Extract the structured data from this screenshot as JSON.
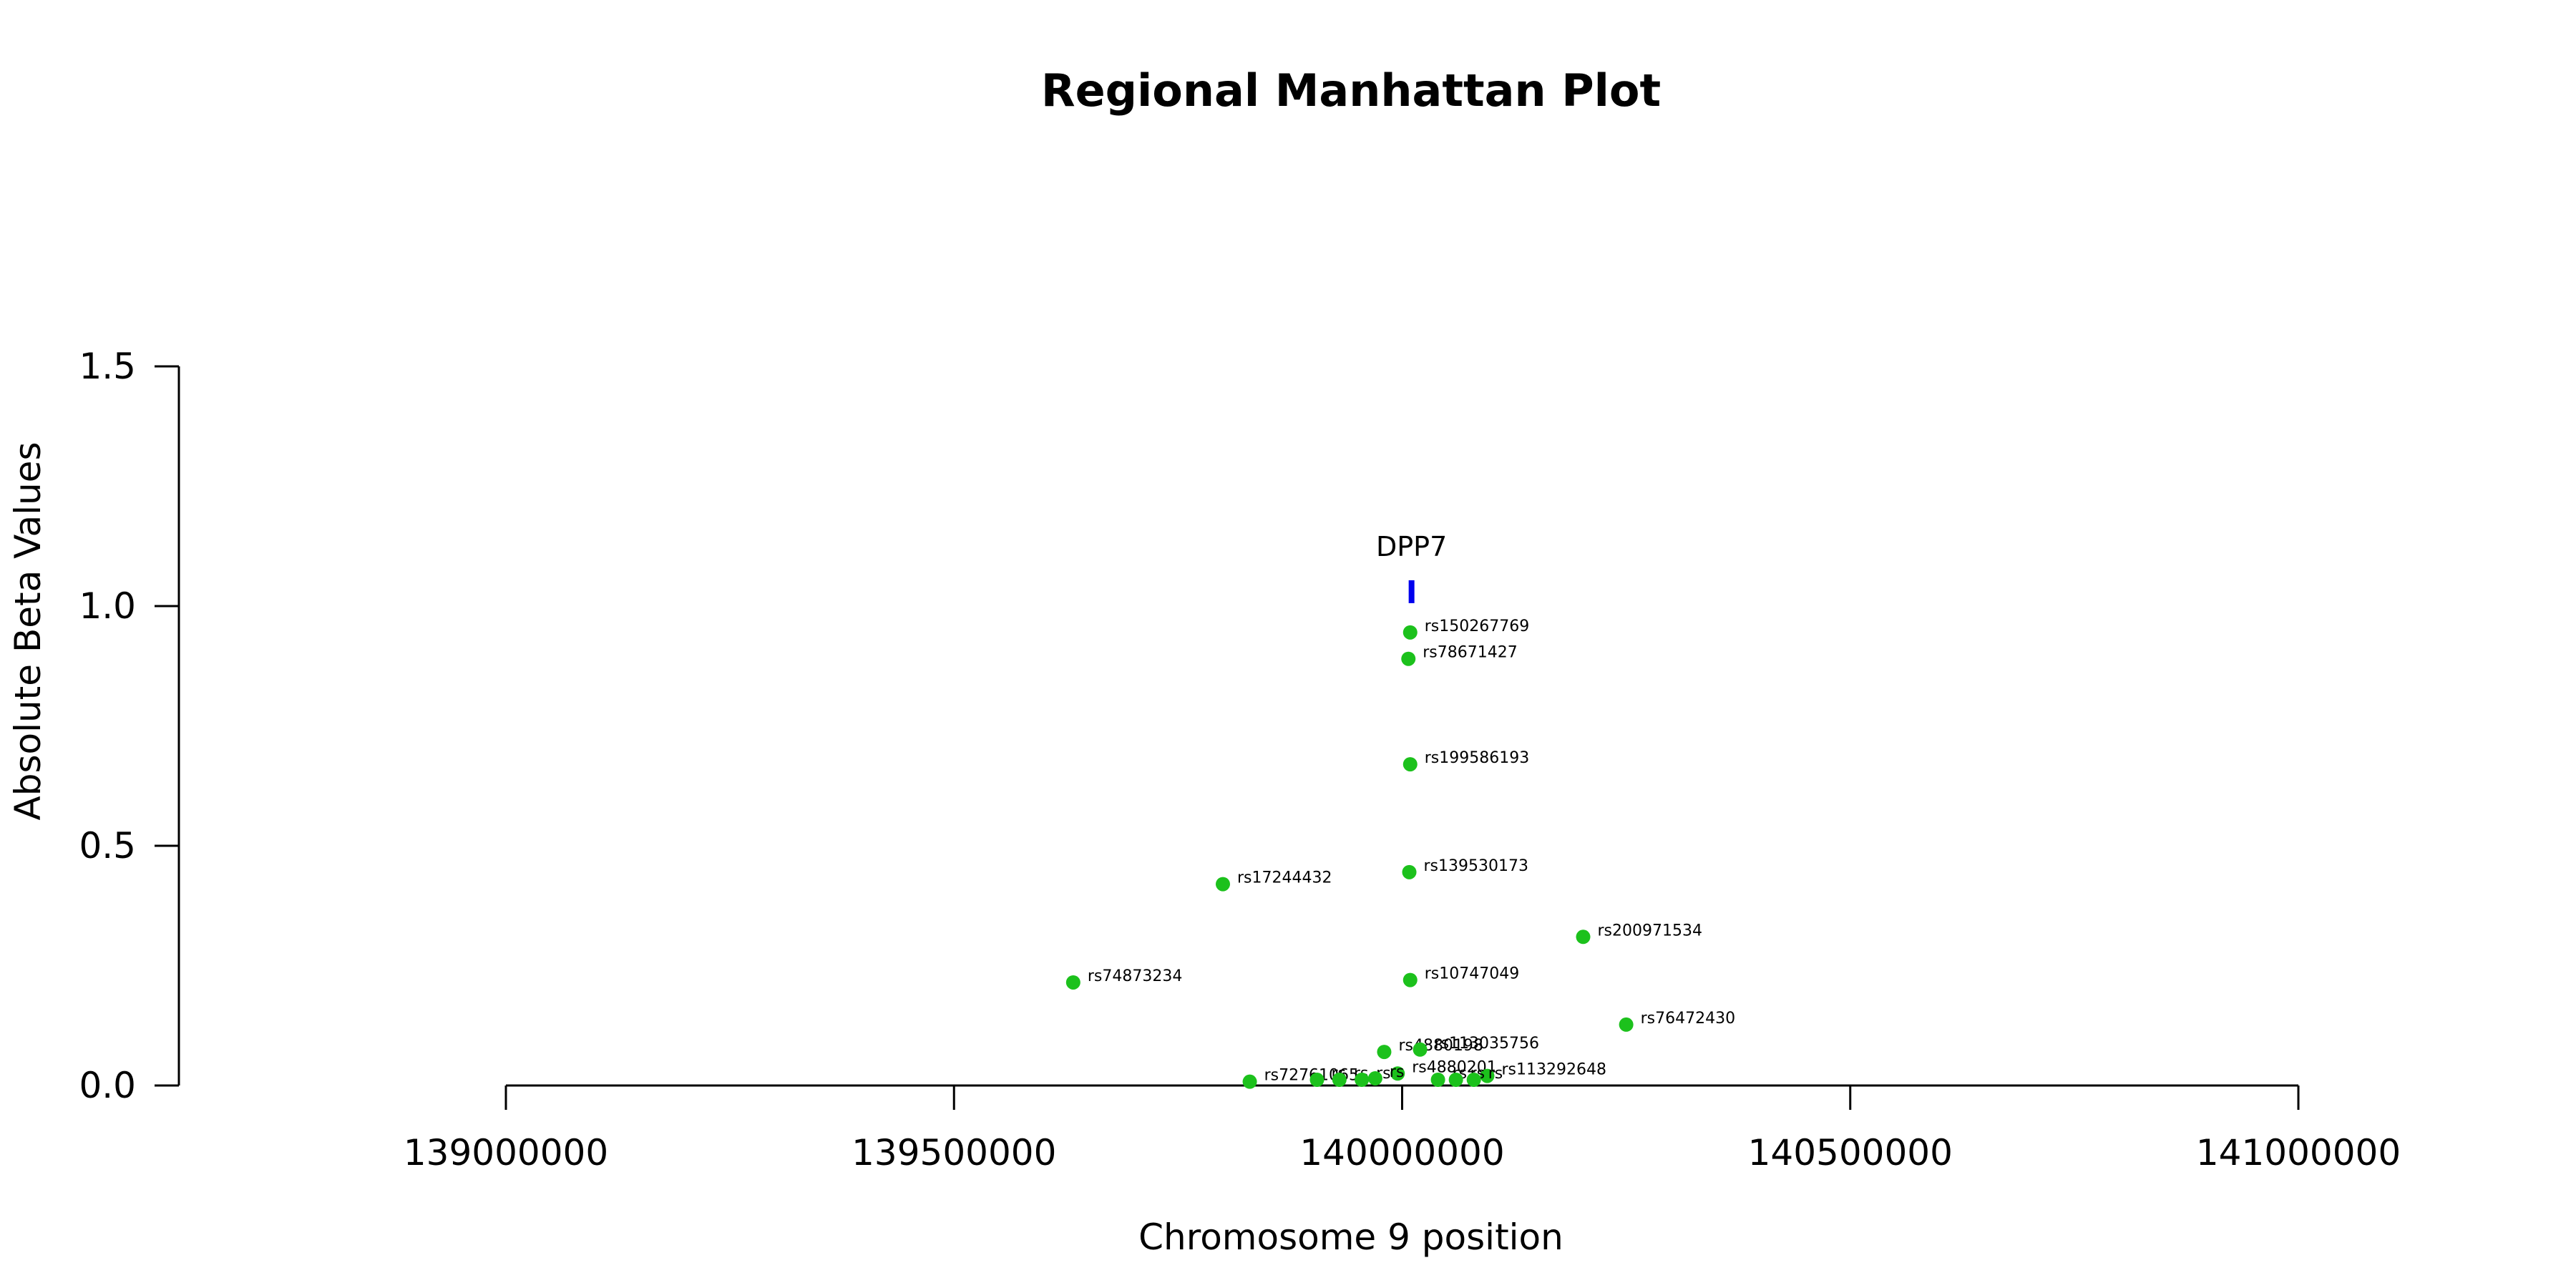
{
  "chart_data": {
    "type": "scatter",
    "title": "Regional Manhattan Plot",
    "xlabel": "Chromosome 9 position",
    "ylabel": "Absolute Beta Values",
    "xlim": [
      139000000,
      141000000
    ],
    "ylim": [
      0,
      1.5
    ],
    "xticks": [
      139000000,
      139500000,
      140000000,
      140500000,
      141000000
    ],
    "xtick_labels": [
      "139000000",
      "139500000",
      "140000000",
      "140500000",
      "141000000"
    ],
    "yticks": [
      0,
      0.5,
      1,
      1.5
    ],
    "ytick_labels": [
      "0.0",
      "0.5",
      "1.0",
      "1.5"
    ],
    "grid": false,
    "point_color": "#1cc11c",
    "gene_color": "#0000ee",
    "genes": [
      {
        "name": "DPP7",
        "start": 140008000,
        "end": 140013000,
        "y": 1.03
      }
    ],
    "points": [
      {
        "label": "rs150267769",
        "x": 140009000,
        "y": 0.945
      },
      {
        "label": "rs78671427",
        "x": 140007000,
        "y": 0.89
      },
      {
        "label": "rs199586193",
        "x": 140009000,
        "y": 0.67
      },
      {
        "label": "rs139530173",
        "x": 140008000,
        "y": 0.445
      },
      {
        "label": "rs17244432",
        "x": 139800000,
        "y": 0.42
      },
      {
        "label": "rs200971534",
        "x": 140202000,
        "y": 0.31
      },
      {
        "label": "rs74873234",
        "x": 139633000,
        "y": 0.215
      },
      {
        "label": "rs10747049",
        "x": 140009000,
        "y": 0.22
      },
      {
        "label": "rs76472430",
        "x": 140250000,
        "y": 0.127
      },
      {
        "label": "rs4880198",
        "x": 139980000,
        "y": 0.07
      },
      {
        "label": "rs113035756",
        "x": 140020000,
        "y": 0.075
      },
      {
        "label": "rs4880201",
        "x": 139995000,
        "y": 0.025
      },
      {
        "label": "rs113292648",
        "x": 140095000,
        "y": 0.02
      },
      {
        "label": "rs72761065",
        "x": 139830000,
        "y": 0.008
      },
      {
        "label": "rs",
        "x": 139905000,
        "y": 0.012
      },
      {
        "label": "rs",
        "x": 139930000,
        "y": 0.012
      },
      {
        "label": "rs",
        "x": 139955000,
        "y": 0.012
      },
      {
        "label": "rs",
        "x": 139970000,
        "y": 0.015
      },
      {
        "label": "rs",
        "x": 140040000,
        "y": 0.012
      },
      {
        "label": "rs",
        "x": 140060000,
        "y": 0.012
      },
      {
        "label": "rs",
        "x": 140080000,
        "y": 0.012
      }
    ]
  }
}
